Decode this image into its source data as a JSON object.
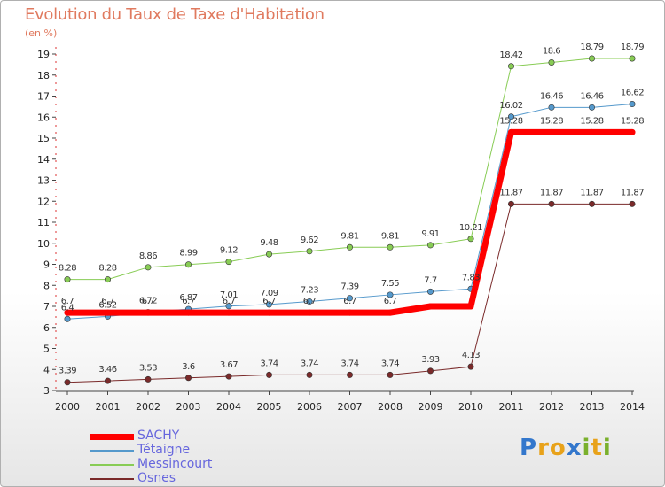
{
  "title": "Evolution du Taux de Taxe d'Habitation",
  "unit": "(en %)",
  "brand": {
    "text": "Proxiti",
    "letters": [
      "P",
      "r",
      "o",
      "x",
      "i",
      "t",
      "i"
    ],
    "colors": [
      "#3377cc",
      "#e8a21a",
      "#e8a21a",
      "#3377cc",
      "#7ab02c",
      "#e8a21a",
      "#7ab02c"
    ]
  },
  "chart_data": {
    "type": "line",
    "title": "Evolution du Taux de Taxe d'Habitation",
    "ylabel": "(en %)",
    "xlabel": "",
    "x": [
      "2000",
      "2001",
      "2002",
      "2003",
      "2004",
      "2005",
      "2006",
      "2007",
      "2008",
      "2009",
      "2010",
      "2011",
      "2012",
      "2013",
      "2014"
    ],
    "ylim": [
      3,
      19
    ],
    "yticks": [
      3,
      4,
      5,
      6,
      7,
      8,
      9,
      10,
      11,
      12,
      13,
      14,
      15,
      16,
      17,
      18,
      19
    ],
    "grid": false,
    "legend_position": "bottom-left",
    "series": [
      {
        "name": "SACHY",
        "color": "#ff0000",
        "width": 7,
        "marker": false,
        "values": [
          6.7,
          6.7,
          6.7,
          6.7,
          6.7,
          6.7,
          6.7,
          6.7,
          6.7,
          7.0,
          7.0,
          15.28,
          15.28,
          15.28,
          15.28
        ],
        "labels": [
          "6.7",
          "6.7",
          "6.7",
          "6.7",
          "6.7",
          "6.7",
          "6.7",
          "6.7",
          "6.7",
          "",
          "",
          "15.28",
          "15.28",
          "15.28",
          "15.28"
        ]
      },
      {
        "name": "Tétaigne",
        "color": "#5599cc",
        "width": 1,
        "marker": true,
        "values": [
          6.4,
          6.52,
          6.72,
          6.87,
          7.01,
          7.09,
          7.23,
          7.39,
          7.55,
          7.7,
          7.83,
          16.02,
          16.46,
          16.46,
          16.62
        ],
        "labels": [
          "6.4",
          "6.52",
          "6.72",
          "6.87",
          "7.01",
          "7.09",
          "7.23",
          "7.39",
          "7.55",
          "7.7",
          "7.83",
          "16.02",
          "16.46",
          "16.46",
          "16.62"
        ]
      },
      {
        "name": "Messincourt",
        "color": "#88cc55",
        "width": 1,
        "marker": true,
        "values": [
          8.28,
          8.28,
          8.86,
          8.99,
          9.12,
          9.48,
          9.62,
          9.81,
          9.81,
          9.91,
          10.21,
          18.42,
          18.6,
          18.79,
          18.79
        ],
        "labels": [
          "8.28",
          "8.28",
          "8.86",
          "8.99",
          "9.12",
          "9.48",
          "9.62",
          "9.81",
          "9.81",
          "9.91",
          "10.21",
          "18.42",
          "18.6",
          "18.79",
          "18.79"
        ]
      },
      {
        "name": "Osnes",
        "color": "#7a2a2a",
        "width": 1,
        "marker": true,
        "values": [
          3.39,
          3.46,
          3.53,
          3.6,
          3.67,
          3.74,
          3.74,
          3.74,
          3.74,
          3.93,
          4.13,
          11.87,
          11.87,
          11.87,
          11.87
        ],
        "labels": [
          "3.39",
          "3.46",
          "3.53",
          "3.6",
          "3.67",
          "3.74",
          "3.74",
          "3.74",
          "3.74",
          "3.93",
          "4.13",
          "11.87",
          "11.87",
          "11.87",
          "11.87"
        ]
      }
    ]
  }
}
